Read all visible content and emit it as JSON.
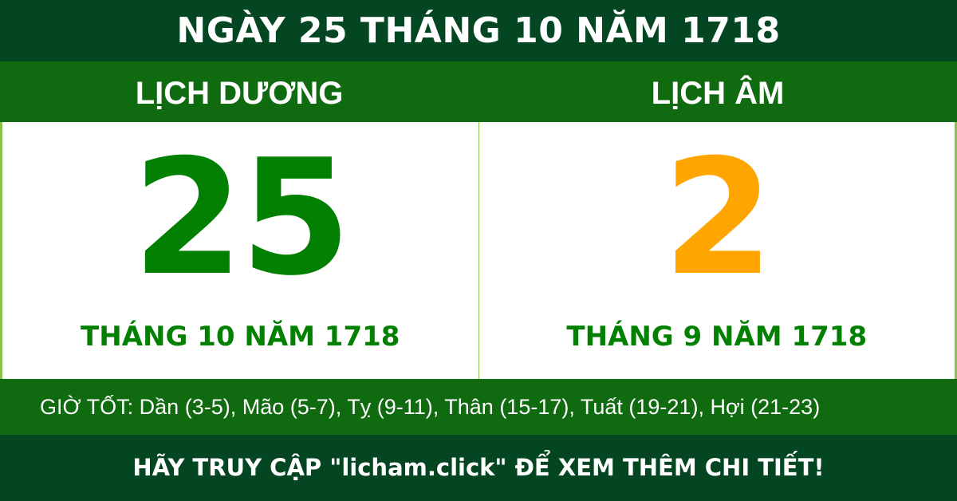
{
  "title": "NGÀY 25 THÁNG 10 NĂM 1718",
  "solar": {
    "heading": "LỊCH DƯƠNG",
    "day": "25",
    "month_year": "THÁNG 10 NĂM 1718"
  },
  "lunar": {
    "heading": "LỊCH ÂM",
    "day": "2",
    "month_year": "THÁNG 9 NĂM 1718"
  },
  "good_hours": "GIỜ TỐT: Dần (3-5), Mão (5-7), Tỵ (9-11), Thân (15-17), Tuất (19-21), Hợi (21-23)",
  "footer": "HÃY TRUY CẬP \"licham.click\" ĐỂ XEM THÊM CHI TIẾT!",
  "colors": {
    "dark_green": "#034621",
    "green_band": "#0f6a10",
    "solar_day": "#028002",
    "lunar_day": "#ffa500"
  }
}
